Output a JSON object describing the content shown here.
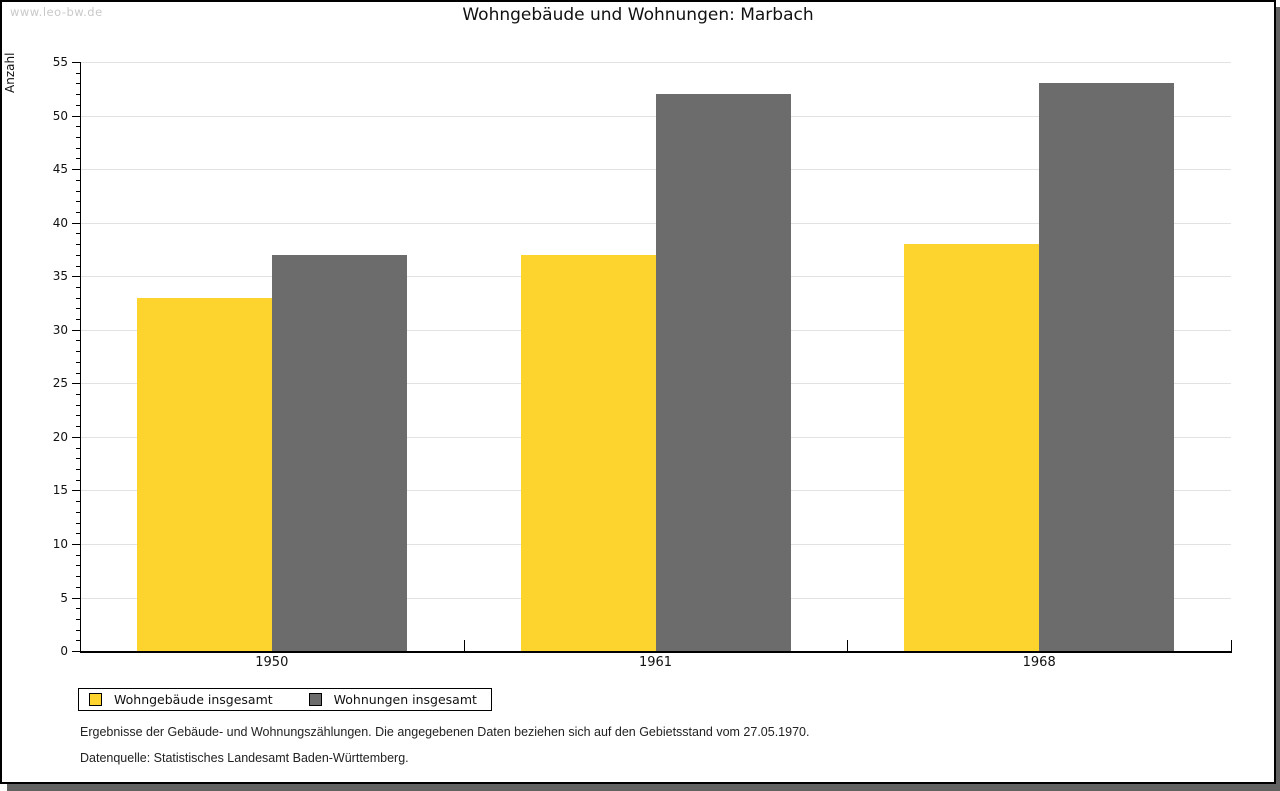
{
  "watermark": "www.leo-bw.de",
  "title": "Wohngebäude und Wohnungen: Marbach",
  "footnotes": {
    "line1": "Ergebnisse der Gebäude- und Wohnungszählungen. Die angegebenen Daten beziehen sich auf den Gebietsstand vom 27.05.1970.",
    "line2": "Datenquelle: Statistisches Landesamt Baden-Württemberg."
  },
  "colors": {
    "series1": "#FDD32D",
    "series2": "#6C6C6C",
    "gridline": "#E2E2E2",
    "axis": "#000000",
    "watermark": "#C9C9C9",
    "shadow": "#626262"
  },
  "chart_data": {
    "type": "bar",
    "title": "Wohngebäude und Wohnungen: Marbach",
    "categories": [
      "1950",
      "1961",
      "1968"
    ],
    "series": [
      {
        "name": "Wohngebäude insgesamt",
        "color": "#FDD32D",
        "values": [
          33,
          37,
          38
        ]
      },
      {
        "name": "Wohnungen insgesamt",
        "color": "#6C6C6C",
        "values": [
          37,
          52,
          53
        ]
      }
    ],
    "xlabel": "",
    "ylabel": "Anzahl",
    "ylim": [
      0,
      55
    ],
    "y_major_step": 5,
    "y_minor_step": 1,
    "grid": true,
    "legend_position": "bottom-left"
  }
}
